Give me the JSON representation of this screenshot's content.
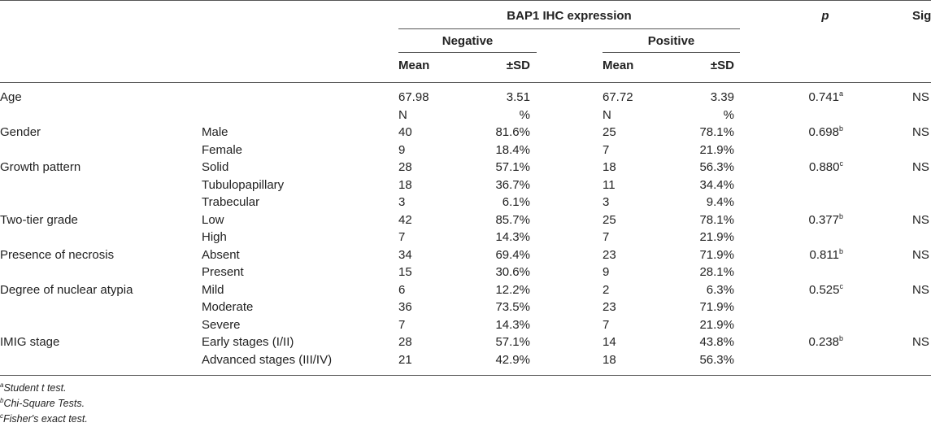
{
  "header": {
    "group_title": "BAP1 IHC expression",
    "p_label": "p",
    "sig_label": "Sig",
    "negative": "Negative",
    "positive": "Positive",
    "mean": "Mean",
    "sd": "±SD"
  },
  "rows": [
    {
      "var": "Age",
      "cat": "",
      "neg_a": "67.98",
      "neg_b": "3.51",
      "pos_a": "67.72",
      "pos_b": "3.39",
      "p": "0.741",
      "p_sup": "a",
      "sig": "NS"
    },
    {
      "var": "",
      "cat": "",
      "neg_a": "N",
      "neg_b": "%",
      "pos_a": "N",
      "pos_b": "%",
      "p": "",
      "p_sup": "",
      "sig": ""
    },
    {
      "var": "Gender",
      "cat": "Male",
      "neg_a": "40",
      "neg_b": "81.6%",
      "pos_a": "25",
      "pos_b": "78.1%",
      "p": "0.698",
      "p_sup": "b",
      "sig": "NS"
    },
    {
      "var": "",
      "cat": "Female",
      "neg_a": "9",
      "neg_b": "18.4%",
      "pos_a": "7",
      "pos_b": "21.9%",
      "p": "",
      "p_sup": "",
      "sig": ""
    },
    {
      "var": "Growth pattern",
      "cat": "Solid",
      "neg_a": "28",
      "neg_b": "57.1%",
      "pos_a": "18",
      "pos_b": "56.3%",
      "p": "0.880",
      "p_sup": "c",
      "sig": "NS"
    },
    {
      "var": "",
      "cat": "Tubulopapillary",
      "neg_a": "18",
      "neg_b": "36.7%",
      "pos_a": "11",
      "pos_b": "34.4%",
      "p": "",
      "p_sup": "",
      "sig": ""
    },
    {
      "var": "",
      "cat": "Trabecular",
      "neg_a": "3",
      "neg_b": "6.1%",
      "pos_a": "3",
      "pos_b": "9.4%",
      "p": "",
      "p_sup": "",
      "sig": ""
    },
    {
      "var": "Two-tier grade",
      "cat": "Low",
      "neg_a": "42",
      "neg_b": "85.7%",
      "pos_a": "25",
      "pos_b": "78.1%",
      "p": "0.377",
      "p_sup": "b",
      "sig": "NS"
    },
    {
      "var": "",
      "cat": "High",
      "neg_a": "7",
      "neg_b": "14.3%",
      "pos_a": "7",
      "pos_b": "21.9%",
      "p": "",
      "p_sup": "",
      "sig": ""
    },
    {
      "var": "Presence of necrosis",
      "cat": "Absent",
      "neg_a": "34",
      "neg_b": "69.4%",
      "pos_a": "23",
      "pos_b": "71.9%",
      "p": "0.811",
      "p_sup": "b",
      "sig": "NS"
    },
    {
      "var": "",
      "cat": "Present",
      "neg_a": "15",
      "neg_b": "30.6%",
      "pos_a": "9",
      "pos_b": "28.1%",
      "p": "",
      "p_sup": "",
      "sig": ""
    },
    {
      "var": "Degree of nuclear atypia",
      "cat": "Mild",
      "neg_a": "6",
      "neg_b": "12.2%",
      "pos_a": "2",
      "pos_b": "6.3%",
      "p": "0.525",
      "p_sup": "c",
      "sig": "NS"
    },
    {
      "var": "",
      "cat": "Moderate",
      "neg_a": "36",
      "neg_b": "73.5%",
      "pos_a": "23",
      "pos_b": "71.9%",
      "p": "",
      "p_sup": "",
      "sig": ""
    },
    {
      "var": "",
      "cat": "Severe",
      "neg_a": "7",
      "neg_b": "14.3%",
      "pos_a": "7",
      "pos_b": "21.9%",
      "p": "",
      "p_sup": "",
      "sig": ""
    },
    {
      "var": "IMIG stage",
      "cat": "Early stages (I/II)",
      "neg_a": "28",
      "neg_b": "57.1%",
      "pos_a": "14",
      "pos_b": "43.8%",
      "p": "0.238",
      "p_sup": "b",
      "sig": "NS"
    },
    {
      "var": "",
      "cat": "Advanced stages (III/IV)",
      "neg_a": "21",
      "neg_b": "42.9%",
      "pos_a": "18",
      "pos_b": "56.3%",
      "p": "",
      "p_sup": "",
      "sig": ""
    }
  ],
  "footnotes": [
    {
      "sup": "a",
      "text": "Student t test."
    },
    {
      "sup": "b",
      "text": "Chi-Square Tests."
    },
    {
      "sup": "c",
      "text": "Fisher's exact test."
    }
  ]
}
